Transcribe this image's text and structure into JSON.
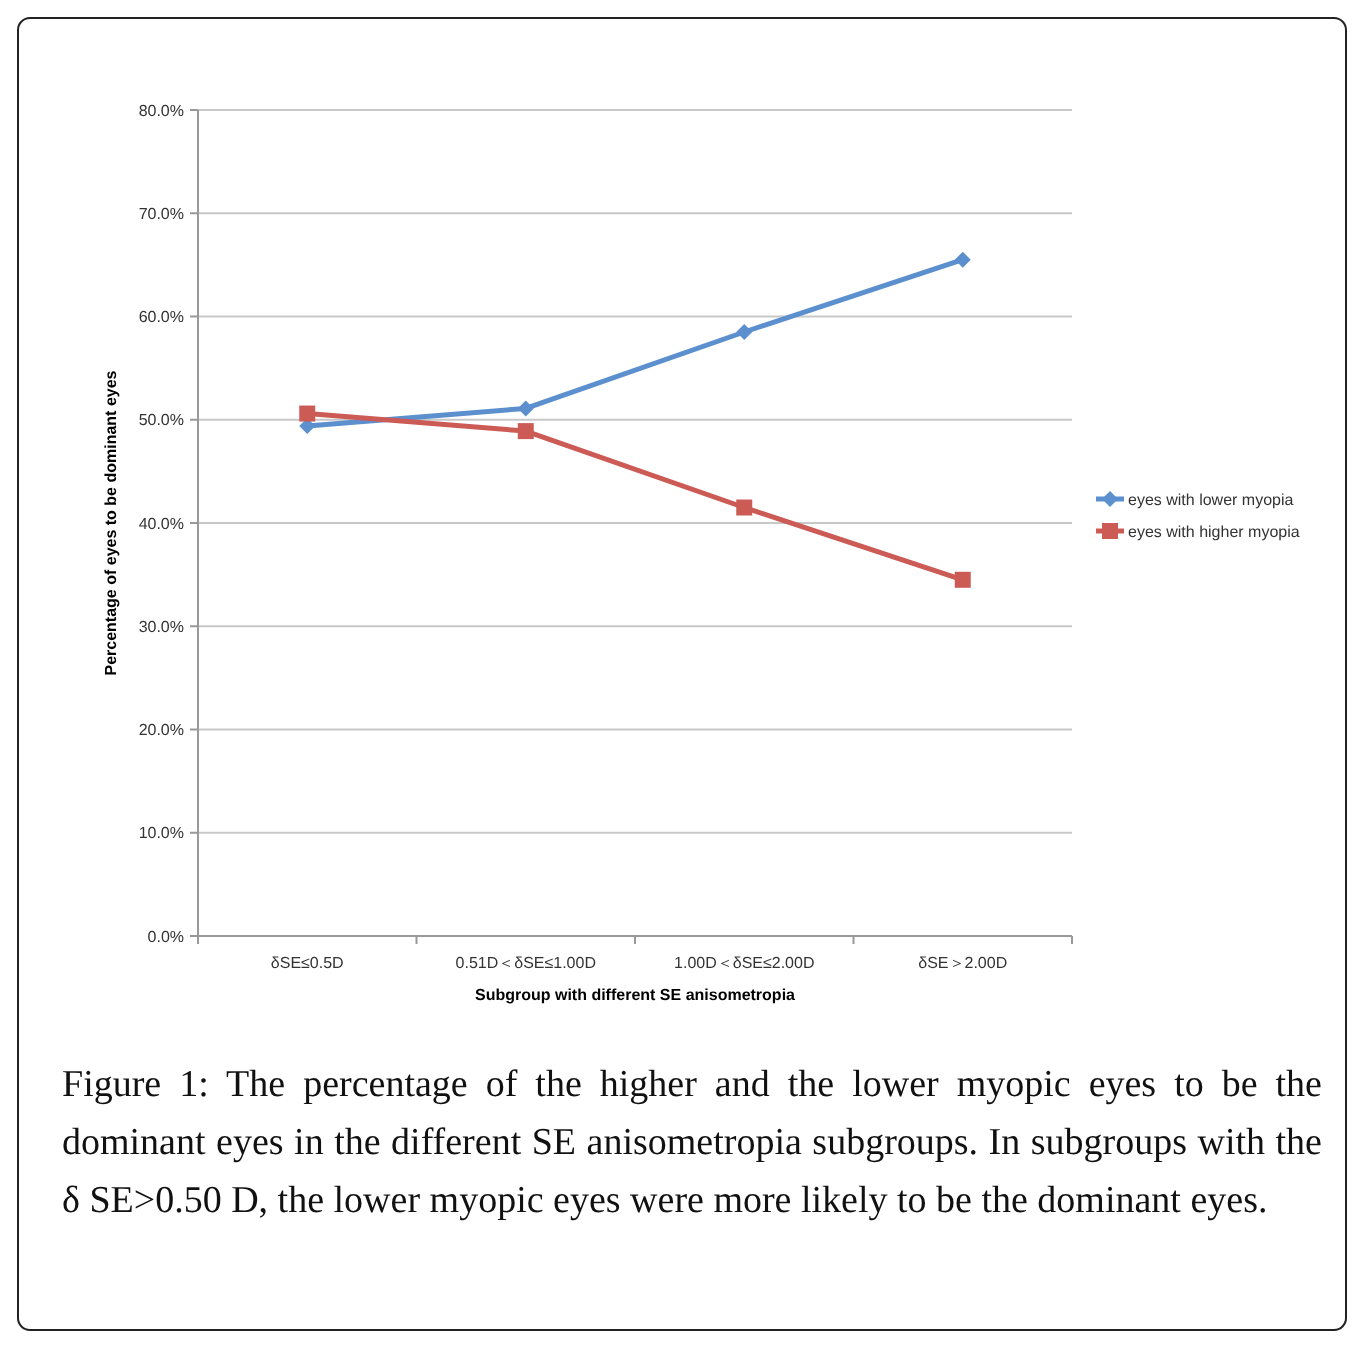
{
  "chart_data": {
    "type": "line",
    "categories": [
      "δSE≤0.5D",
      "0.51D＜δSE≤1.00D",
      "1.00D＜δSE≤2.00D",
      "δSE＞2.00D"
    ],
    "series": [
      {
        "name": "eyes with lower myopia",
        "color": "#5b8fce",
        "values": [
          49.4,
          51.1,
          58.5,
          65.5
        ],
        "marker": "diamond"
      },
      {
        "name": "eyes with higher myopia",
        "color": "#cc5a55",
        "values": [
          50.6,
          48.9,
          41.5,
          34.5
        ],
        "marker": "square"
      }
    ],
    "xlabel": "Subgroup with different SE anisometropia",
    "ylabel": "Percentage of eyes to be dominant eyes",
    "ylim": [
      0,
      80
    ],
    "yticks": [
      {
        "value": 0,
        "label": "0.0%"
      },
      {
        "value": 10,
        "label": "10.0%"
      },
      {
        "value": 20,
        "label": "20.0%"
      },
      {
        "value": 30,
        "label": "30.0%"
      },
      {
        "value": 40,
        "label": "40.0%"
      },
      {
        "value": 50,
        "label": "50.0%"
      },
      {
        "value": 60,
        "label": "60.0%"
      },
      {
        "value": 70,
        "label": "70.0%"
      },
      {
        "value": 80,
        "label": "80.0%"
      }
    ],
    "grid": "y",
    "legend": "right",
    "line_style": "solid",
    "annotations": [
      "Figure 1: The percentage of the higher and the lower myopic eyes to be the dominant eyes in the different SE anisometropia subgroups. In subgroups with the δ SE>0.50 D, the lower myopic eyes were more likely to be the dominant eyes."
    ]
  }
}
